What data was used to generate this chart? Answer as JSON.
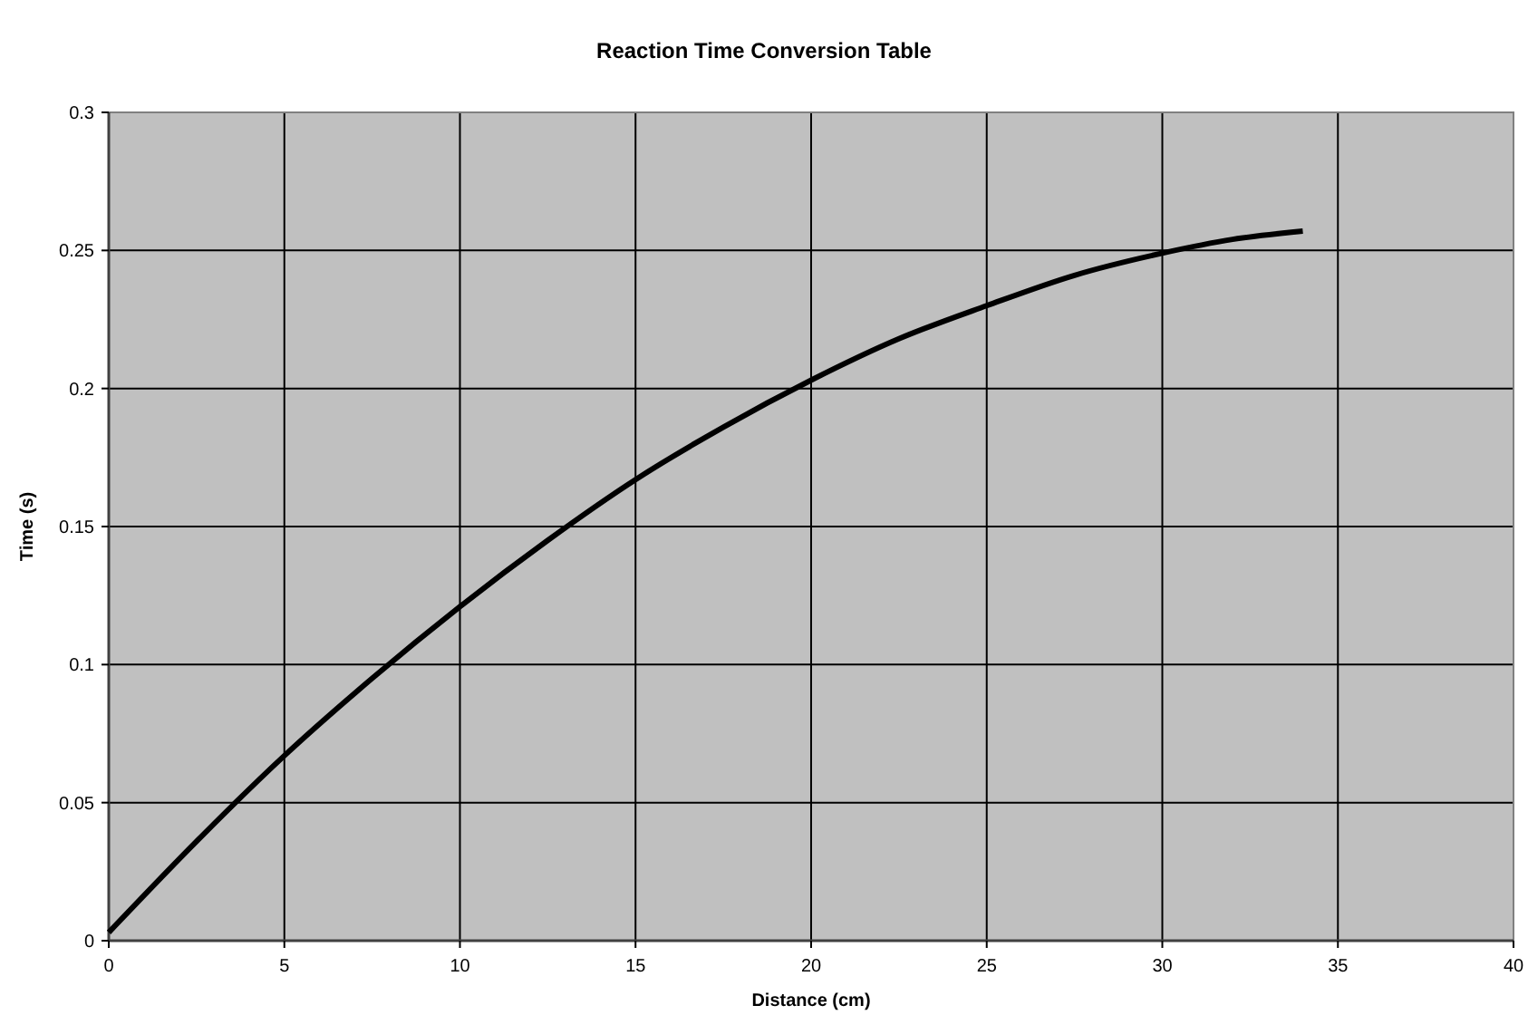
{
  "chart_data": {
    "type": "line",
    "title": "Reaction Time Conversion Table",
    "xlabel": "Distance (cm)",
    "ylabel": "Time (s)",
    "x": [
      0,
      2.5,
      5,
      7.5,
      10,
      12.5,
      15,
      17.5,
      20,
      22.5,
      25,
      27.5,
      30,
      32,
      34
    ],
    "series": [
      {
        "color": "#000000",
        "values": [
          0.003,
          0.036,
          0.067,
          0.095,
          0.121,
          0.145,
          0.167,
          0.186,
          0.203,
          0.218,
          0.23,
          0.241,
          0.249,
          0.254,
          0.257
        ]
      }
    ],
    "xlim": [
      0,
      40
    ],
    "xticks": [
      0,
      5,
      10,
      15,
      20,
      25,
      30,
      35,
      40
    ],
    "ylim": [
      0,
      0.3
    ],
    "yticks": [
      0,
      0.05,
      0.1,
      0.15,
      0.2,
      0.25,
      0.3
    ],
    "grid": true,
    "marker": "none",
    "line_style": "solid"
  }
}
